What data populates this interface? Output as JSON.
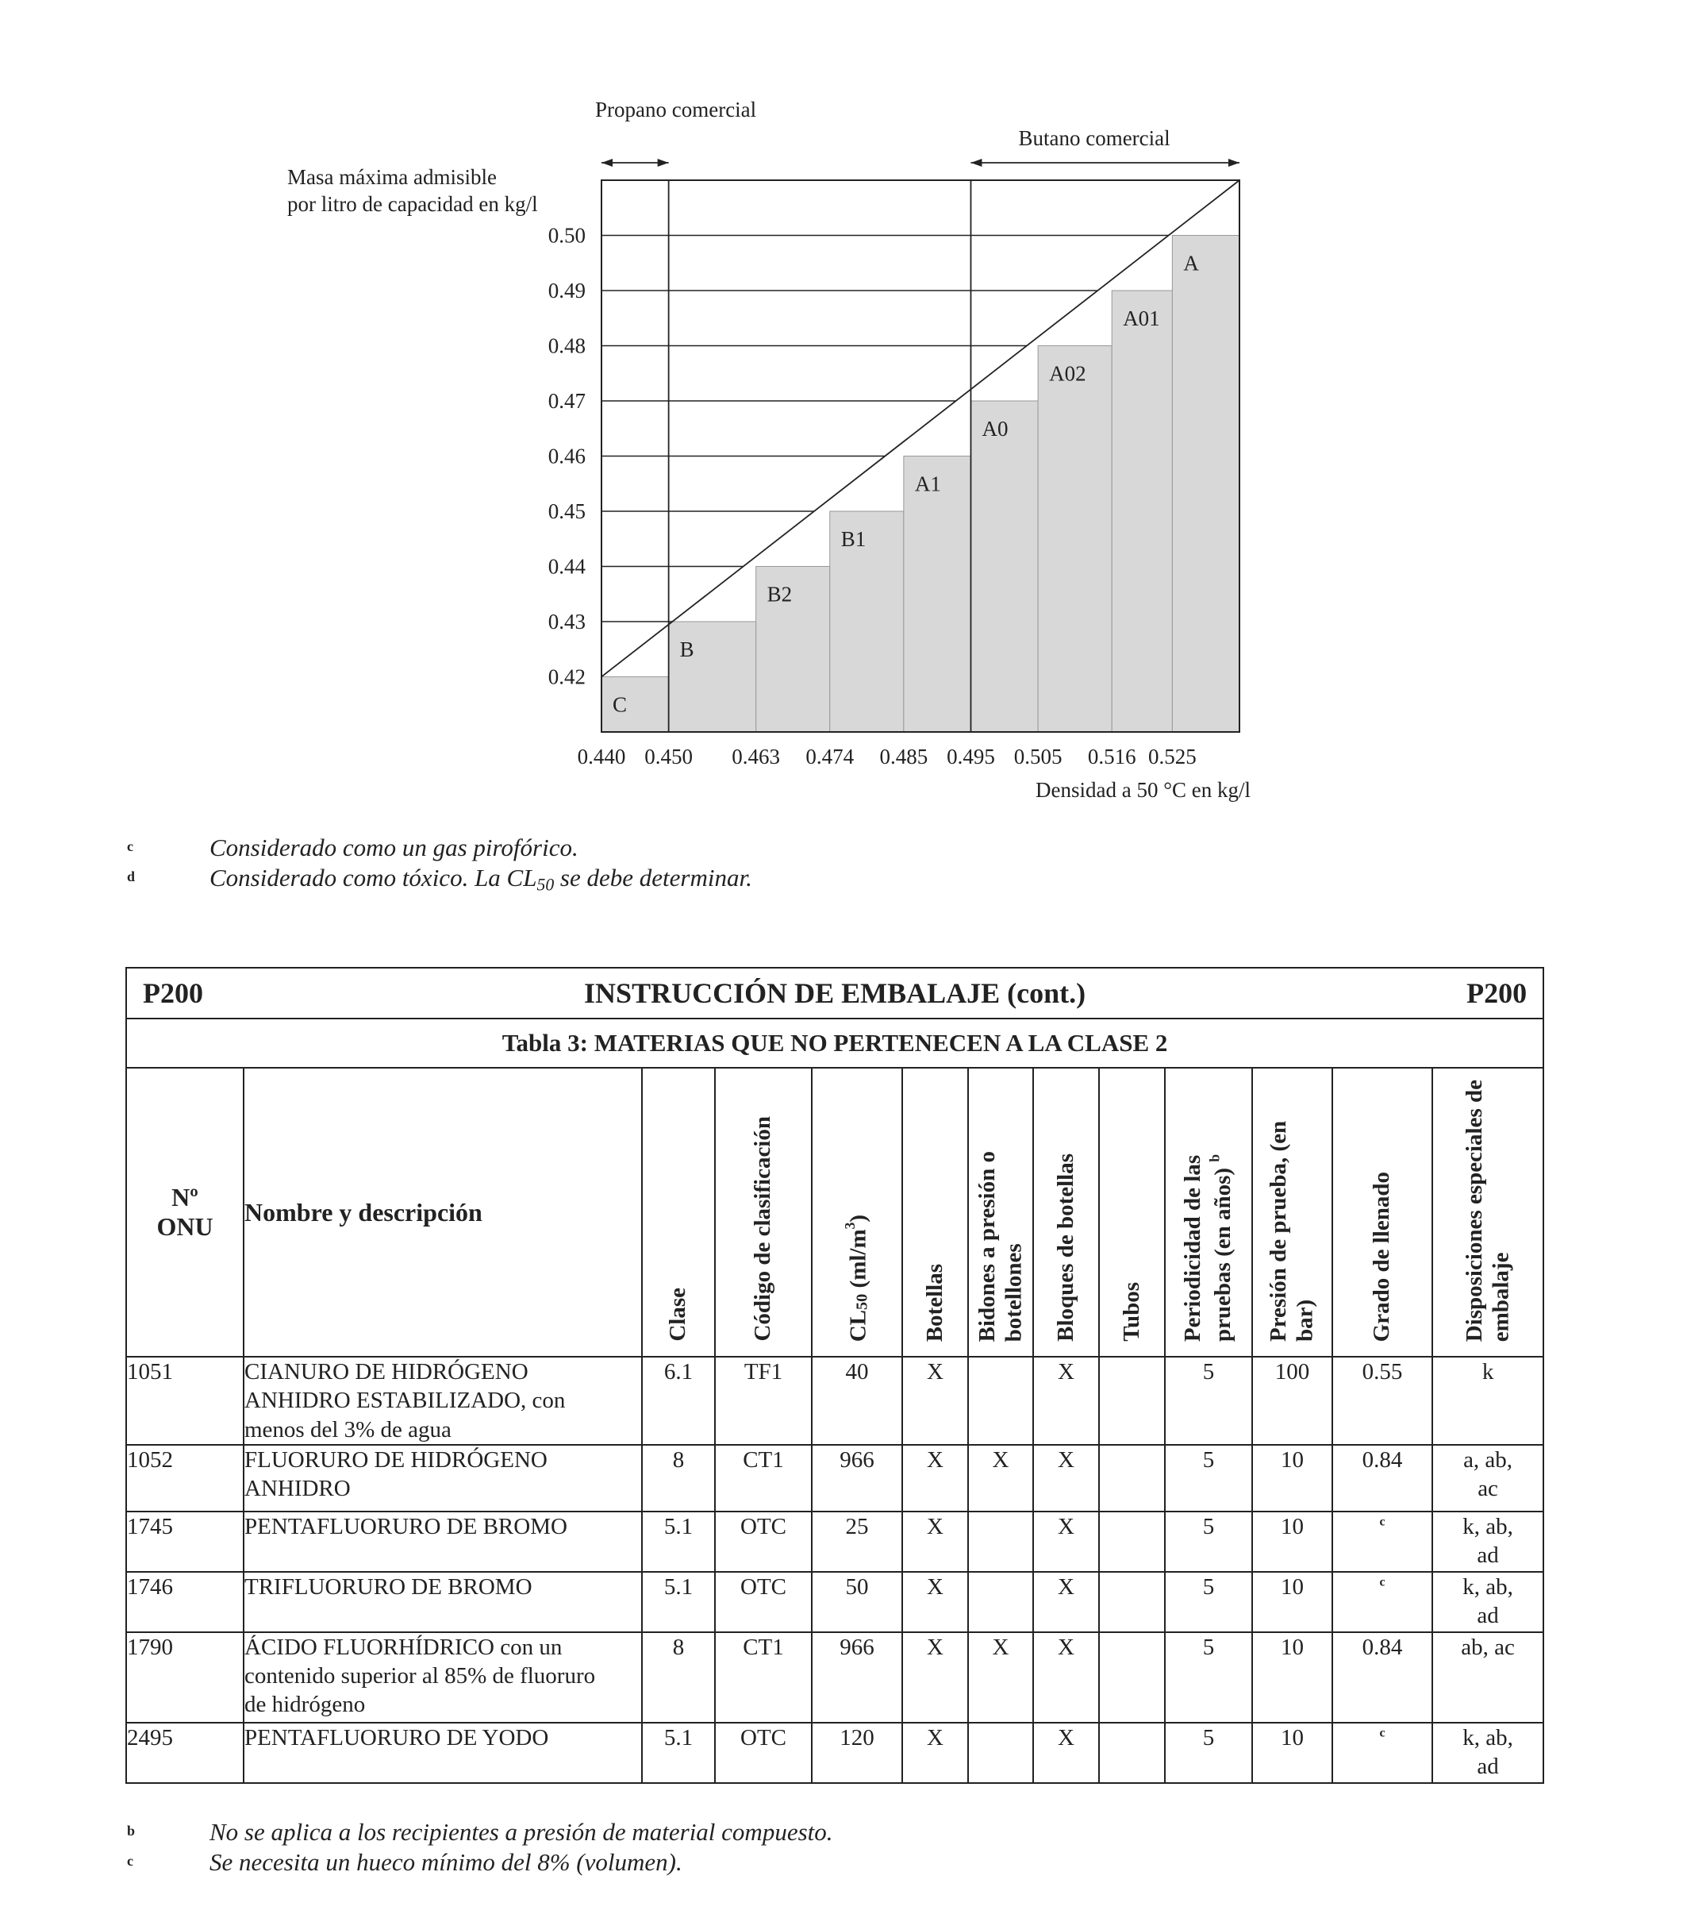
{
  "chart_data": {
    "type": "step",
    "title": "",
    "ylabel": "Masa máxima admisible por litro de capacidad en kg/l",
    "xlabel": "Densidad a 50 °C en kg/l",
    "x_ticks": [
      0.44,
      0.45,
      0.463,
      0.474,
      0.485,
      0.495,
      0.505,
      0.516,
      0.525
    ],
    "x_tick_labels": [
      "0.440",
      "0.450",
      "0.463",
      "0.474",
      "0.485",
      "0.495",
      "0.505",
      "0.516",
      "0.525"
    ],
    "y_ticks": [
      0.42,
      0.43,
      0.44,
      0.45,
      0.46,
      0.47,
      0.48,
      0.49,
      0.5
    ],
    "y_tick_labels": [
      "0.42",
      "0.43",
      "0.44",
      "0.45",
      "0.46",
      "0.47",
      "0.48",
      "0.49",
      "0.50"
    ],
    "xlim": [
      0.44,
      0.535
    ],
    "ylim": [
      0.41,
      0.51
    ],
    "steps": [
      {
        "label": "C",
        "x_from": 0.44,
        "x_to": 0.45,
        "value": 0.42
      },
      {
        "label": "B",
        "x_from": 0.45,
        "x_to": 0.463,
        "value": 0.43
      },
      {
        "label": "B2",
        "x_from": 0.463,
        "x_to": 0.474,
        "value": 0.44
      },
      {
        "label": "B1",
        "x_from": 0.474,
        "x_to": 0.485,
        "value": 0.45
      },
      {
        "label": "A1",
        "x_from": 0.485,
        "x_to": 0.495,
        "value": 0.46
      },
      {
        "label": "A0",
        "x_from": 0.495,
        "x_to": 0.505,
        "value": 0.47
      },
      {
        "label": "A02",
        "x_from": 0.505,
        "x_to": 0.516,
        "value": 0.48
      },
      {
        "label": "A01",
        "x_from": 0.516,
        "x_to": 0.525,
        "value": 0.49
      },
      {
        "label": "A",
        "x_from": 0.525,
        "x_to": 0.535,
        "value": 0.5
      }
    ],
    "diagonal": {
      "from": [
        0.44,
        0.42
      ],
      "to": [
        0.535,
        0.51
      ]
    },
    "ranges": [
      {
        "label": "Propano comercial",
        "x_from": 0.44,
        "x_to": 0.45
      },
      {
        "label": "Butano comercial",
        "x_from": 0.495,
        "x_to": 0.535
      }
    ],
    "colors": {
      "fill": "#d8d8d8",
      "line": "#222222"
    }
  },
  "footnotes_top": [
    {
      "mark": "c",
      "text": "Considerado como un gas pirofórico."
    },
    {
      "mark": "d",
      "text_before": "Considerado como tóxico. La CL",
      "subscript": "50",
      "text_after": " se debe determinar."
    }
  ],
  "packing_instruction": {
    "code_left": "P200",
    "title": "INSTRUCCIÓN DE EMBALAJE (cont.)",
    "code_right": "P200",
    "table_title": "Tabla 3:  MATERIAS QUE NO PERTENECEN A LA CLASE 2",
    "headers": {
      "onu_line1": "Nº",
      "onu_line2": "ONU",
      "name": "Nombre y descripción",
      "clase": "Clase",
      "codigo": "Código de clasificación",
      "cl50_prefix": "CL",
      "cl50_sub": "50",
      "cl50_suffix": " (ml/m",
      "cl50_sup": "3",
      "cl50_end": ")",
      "botellas": "Botellas",
      "bidones_line1": "Bidones a presión o",
      "bidones_line2": "botellones",
      "bloques": "Bloques de botellas",
      "tubos": "Tubos",
      "periodicidad_line1": "Periodicidad de las",
      "periodicidad_line2": "pruebas (en años)",
      "periodicidad_note": "b",
      "presion": "Presión de prueba, (en bar)",
      "grado": "Grado de llenado",
      "disposiciones_line1": "Disposiciones especiales de",
      "disposiciones_line2": "embalaje"
    },
    "rows": [
      {
        "onu": "1051",
        "name": [
          "CIANURO DE HIDRÓGENO",
          "ANHIDRO ESTABILIZADO, con",
          "menos del 3% de agua"
        ],
        "clase": "6.1",
        "codigo": "TF1",
        "cl50": "40",
        "botellas": "X",
        "bidones": "",
        "bloques": "X",
        "tubos": "",
        "periodicidad": "5",
        "presion": "100",
        "grado": "0.55",
        "grado_note": "",
        "disp": [
          "k"
        ]
      },
      {
        "onu": "1052",
        "name": [
          "FLUORURO DE HIDRÓGENO",
          "ANHIDRO"
        ],
        "clase": "8",
        "codigo": "CT1",
        "cl50": "966",
        "botellas": "X",
        "bidones": "X",
        "bloques": "X",
        "tubos": "",
        "periodicidad": "5",
        "presion": "10",
        "grado": "0.84",
        "grado_note": "",
        "disp": [
          "a, ab,",
          "ac"
        ]
      },
      {
        "onu": "1745",
        "name": [
          "PENTAFLUORURO DE BROMO"
        ],
        "clase": "5.1",
        "codigo": "OTC",
        "cl50": "25",
        "botellas": "X",
        "bidones": "",
        "bloques": "X",
        "tubos": "",
        "periodicidad": "5",
        "presion": "10",
        "grado": "",
        "grado_note": "c",
        "disp": [
          "k, ab,",
          "ad"
        ]
      },
      {
        "onu": "1746",
        "name": [
          "TRIFLUORURO DE BROMO"
        ],
        "clase": "5.1",
        "codigo": "OTC",
        "cl50": "50",
        "botellas": "X",
        "bidones": "",
        "bloques": "X",
        "tubos": "",
        "periodicidad": "5",
        "presion": "10",
        "grado": "",
        "grado_note": "c",
        "disp": [
          "k, ab,",
          "ad"
        ]
      },
      {
        "onu": "1790",
        "name": [
          "ÁCIDO FLUORHÍDRICO con un",
          "contenido superior al 85% de fluoruro",
          "de hidrógeno"
        ],
        "clase": "8",
        "codigo": "CT1",
        "cl50": "966",
        "botellas": "X",
        "bidones": "X",
        "bloques": "X",
        "tubos": "",
        "periodicidad": "5",
        "presion": "10",
        "grado": "0.84",
        "grado_note": "",
        "disp": [
          "ab, ac"
        ]
      },
      {
        "onu": "2495",
        "name": [
          "PENTAFLUORURO DE YODO"
        ],
        "clase": "5.1",
        "codigo": "OTC",
        "cl50": "120",
        "botellas": "X",
        "bidones": "",
        "bloques": "X",
        "tubos": "",
        "periodicidad": "5",
        "presion": "10",
        "grado": "",
        "grado_note": "c",
        "disp": [
          "k, ab,",
          "ad"
        ]
      }
    ]
  },
  "footnotes_bottom": [
    {
      "mark": "b",
      "text": "No se aplica a los recipientes a presión de material compuesto."
    },
    {
      "mark": "c",
      "text": "Se necesita un hueco mínimo del  8% (volumen)."
    }
  ]
}
